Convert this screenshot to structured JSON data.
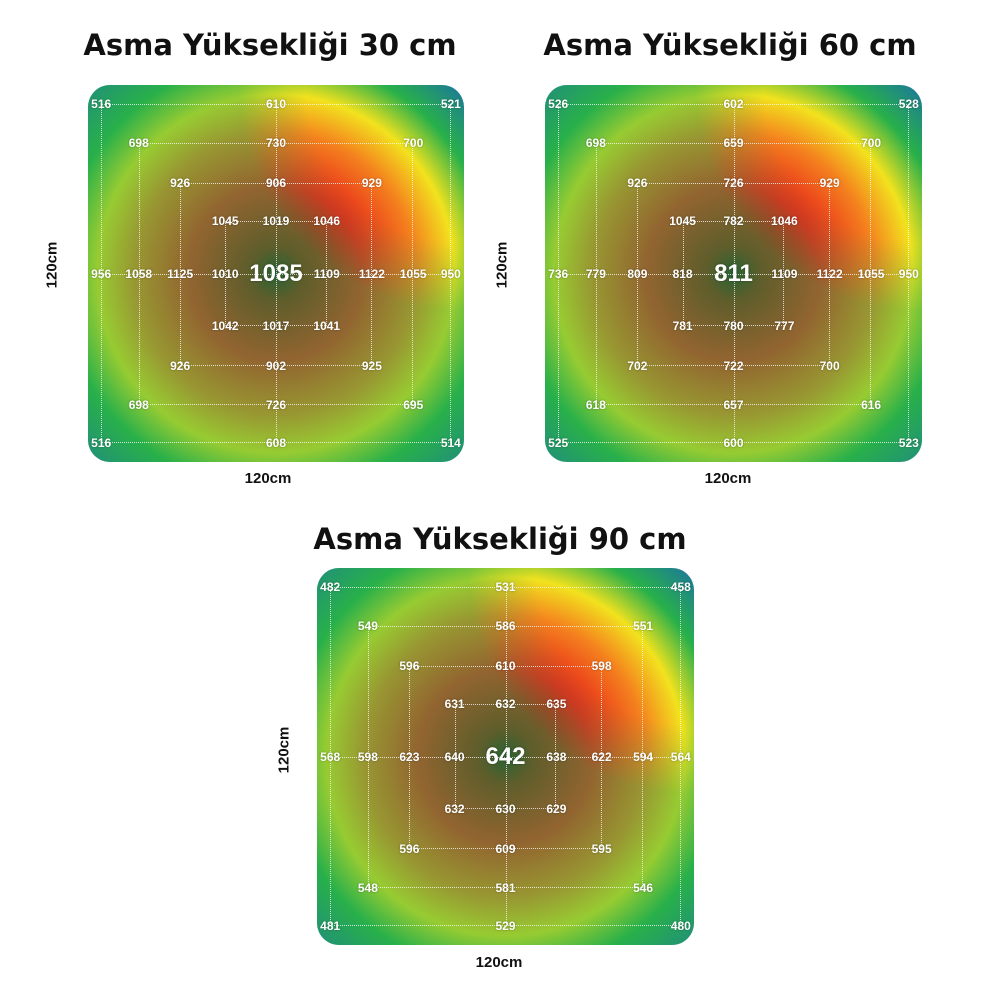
{
  "colors": {
    "center": "#2a2420",
    "dark_red": "#8a1a12",
    "red": "#e8261a",
    "orange": "#f4821e",
    "yellow": "#f2e21e",
    "green": "#28b04a",
    "blue": "#1a6fa8"
  },
  "chart_data": [
    {
      "type": "heatmap",
      "title": "Asma Yüksekliği 30 cm",
      "xlabel": "120cm",
      "ylabel": "120cm",
      "center_value": "1085",
      "values": [
        {
          "label": "516",
          "col": 0,
          "row": 0
        },
        {
          "label": "610",
          "col": 4,
          "row": 0
        },
        {
          "label": "521",
          "col": 8,
          "row": 0
        },
        {
          "label": "698",
          "col": 1,
          "row": 1
        },
        {
          "label": "730",
          "col": 4,
          "row": 1
        },
        {
          "label": "700",
          "col": 7,
          "row": 1
        },
        {
          "label": "926",
          "col": 2,
          "row": 2
        },
        {
          "label": "906",
          "col": 4,
          "row": 2
        },
        {
          "label": "929",
          "col": 6,
          "row": 2
        },
        {
          "label": "1045",
          "col": 3,
          "row": 3
        },
        {
          "label": "1019",
          "col": 4,
          "row": 3
        },
        {
          "label": "1046",
          "col": 5,
          "row": 3
        },
        {
          "label": "956",
          "col": 0,
          "row": 4
        },
        {
          "label": "1058",
          "col": 1,
          "row": 4
        },
        {
          "label": "1125",
          "col": 2,
          "row": 4
        },
        {
          "label": "1010",
          "col": 3,
          "row": 4
        },
        {
          "label": "1109",
          "col": 5,
          "row": 4
        },
        {
          "label": "1122",
          "col": 6,
          "row": 4
        },
        {
          "label": "1055",
          "col": 7,
          "row": 4
        },
        {
          "label": "950",
          "col": 8,
          "row": 4
        },
        {
          "label": "1042",
          "col": 3,
          "row": 5
        },
        {
          "label": "1017",
          "col": 4,
          "row": 5
        },
        {
          "label": "1041",
          "col": 5,
          "row": 5
        },
        {
          "label": "926",
          "col": 2,
          "row": 6
        },
        {
          "label": "902",
          "col": 4,
          "row": 6
        },
        {
          "label": "925",
          "col": 6,
          "row": 6
        },
        {
          "label": "698",
          "col": 1,
          "row": 7
        },
        {
          "label": "726",
          "col": 4,
          "row": 7
        },
        {
          "label": "695",
          "col": 7,
          "row": 7
        },
        {
          "label": "516",
          "col": 0,
          "row": 8
        },
        {
          "label": "608",
          "col": 4,
          "row": 8
        },
        {
          "label": "514",
          "col": 8,
          "row": 8
        }
      ]
    },
    {
      "type": "heatmap",
      "title": "Asma Yüksekliği 60 cm",
      "xlabel": "120cm",
      "ylabel": "120cm",
      "center_value": "811",
      "values": [
        {
          "label": "526",
          "col": 0,
          "row": 0
        },
        {
          "label": "602",
          "col": 4,
          "row": 0
        },
        {
          "label": "528",
          "col": 8,
          "row": 0
        },
        {
          "label": "698",
          "col": 1,
          "row": 1
        },
        {
          "label": "659",
          "col": 4,
          "row": 1
        },
        {
          "label": "700",
          "col": 7,
          "row": 1
        },
        {
          "label": "926",
          "col": 2,
          "row": 2
        },
        {
          "label": "726",
          "col": 4,
          "row": 2
        },
        {
          "label": "929",
          "col": 6,
          "row": 2
        },
        {
          "label": "1045",
          "col": 3,
          "row": 3
        },
        {
          "label": "782",
          "col": 4,
          "row": 3
        },
        {
          "label": "1046",
          "col": 5,
          "row": 3
        },
        {
          "label": "736",
          "col": 0,
          "row": 4
        },
        {
          "label": "779",
          "col": 1,
          "row": 4
        },
        {
          "label": "809",
          "col": 2,
          "row": 4
        },
        {
          "label": "818",
          "col": 3,
          "row": 4
        },
        {
          "label": "1109",
          "col": 5,
          "row": 4
        },
        {
          "label": "1122",
          "col": 6,
          "row": 4
        },
        {
          "label": "1055",
          "col": 7,
          "row": 4
        },
        {
          "label": "950",
          "col": 8,
          "row": 4
        },
        {
          "label": "781",
          "col": 3,
          "row": 5
        },
        {
          "label": "780",
          "col": 4,
          "row": 5
        },
        {
          "label": "777",
          "col": 5,
          "row": 5
        },
        {
          "label": "702",
          "col": 2,
          "row": 6
        },
        {
          "label": "722",
          "col": 4,
          "row": 6
        },
        {
          "label": "700",
          "col": 6,
          "row": 6
        },
        {
          "label": "618",
          "col": 1,
          "row": 7
        },
        {
          "label": "657",
          "col": 4,
          "row": 7
        },
        {
          "label": "616",
          "col": 7,
          "row": 7
        },
        {
          "label": "525",
          "col": 0,
          "row": 8
        },
        {
          "label": "600",
          "col": 4,
          "row": 8
        },
        {
          "label": "523",
          "col": 8,
          "row": 8
        }
      ]
    },
    {
      "type": "heatmap",
      "title": "Asma Yüksekliği 90 cm",
      "xlabel": "120cm",
      "ylabel": "120cm",
      "center_value": "642",
      "values": [
        {
          "label": "482",
          "col": 0,
          "row": 0
        },
        {
          "label": "531",
          "col": 4,
          "row": 0
        },
        {
          "label": "458",
          "col": 8,
          "row": 0
        },
        {
          "label": "549",
          "col": 1,
          "row": 1
        },
        {
          "label": "586",
          "col": 4,
          "row": 1
        },
        {
          "label": "551",
          "col": 7,
          "row": 1
        },
        {
          "label": "596",
          "col": 2,
          "row": 2
        },
        {
          "label": "610",
          "col": 4,
          "row": 2
        },
        {
          "label": "598",
          "col": 6,
          "row": 2
        },
        {
          "label": "631",
          "col": 3,
          "row": 3
        },
        {
          "label": "632",
          "col": 4,
          "row": 3
        },
        {
          "label": "635",
          "col": 5,
          "row": 3
        },
        {
          "label": "568",
          "col": 0,
          "row": 4
        },
        {
          "label": "598",
          "col": 1,
          "row": 4
        },
        {
          "label": "623",
          "col": 2,
          "row": 4
        },
        {
          "label": "640",
          "col": 3,
          "row": 4
        },
        {
          "label": "638",
          "col": 5,
          "row": 4
        },
        {
          "label": "622",
          "col": 6,
          "row": 4
        },
        {
          "label": "594",
          "col": 7,
          "row": 4
        },
        {
          "label": "564",
          "col": 8,
          "row": 4
        },
        {
          "label": "632",
          "col": 3,
          "row": 5
        },
        {
          "label": "630",
          "col": 4,
          "row": 5
        },
        {
          "label": "629",
          "col": 5,
          "row": 5
        },
        {
          "label": "596",
          "col": 2,
          "row": 6
        },
        {
          "label": "609",
          "col": 4,
          "row": 6
        },
        {
          "label": "595",
          "col": 6,
          "row": 6
        },
        {
          "label": "548",
          "col": 1,
          "row": 7
        },
        {
          "label": "581",
          "col": 4,
          "row": 7
        },
        {
          "label": "546",
          "col": 7,
          "row": 7
        },
        {
          "label": "481",
          "col": 0,
          "row": 8
        },
        {
          "label": "529",
          "col": 4,
          "row": 8
        },
        {
          "label": "480",
          "col": 8,
          "row": 8
        }
      ]
    }
  ]
}
